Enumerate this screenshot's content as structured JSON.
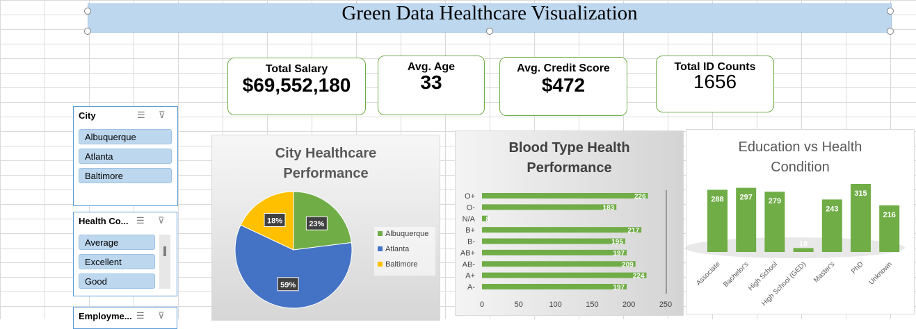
{
  "title": "Green Data Healthcare Visualization",
  "kpis": {
    "total_salary": {
      "label": "Total Salary",
      "value": "$69,552,180"
    },
    "avg_age": {
      "label": "Avg. Age",
      "value": "33"
    },
    "avg_credit": {
      "label": "Avg. Credit Score",
      "value": "$472"
    },
    "total_id": {
      "label": "Total ID Counts",
      "value": "1656"
    }
  },
  "slicers": {
    "city": {
      "header": "City",
      "items": [
        "Albuquerque",
        "Atlanta",
        "Baltimore"
      ]
    },
    "health": {
      "header": "Health Co...",
      "items": [
        "Average",
        "Excellent",
        "Good"
      ]
    },
    "employment": {
      "header": "Employme..."
    }
  },
  "icons": {
    "multiselect": "multi-select-icon",
    "clearfilter": "clear-filter-icon"
  },
  "colors": {
    "green": "#70ad47",
    "blue": "#4472c4",
    "gold": "#ffc000",
    "slicer_item": "#bdd7ee",
    "title_bg": "#bdd7ee"
  },
  "chart_data": [
    {
      "type": "pie",
      "title": "City Healthcare Performance",
      "categories": [
        "Albuquerque",
        "Atlanta",
        "Baltimore"
      ],
      "values": [
        23,
        59,
        18
      ],
      "labels": [
        "23%",
        "59%",
        "18%"
      ],
      "legend": "right"
    },
    {
      "type": "bar",
      "orientation": "horizontal",
      "title": "Blood Type Health Performance",
      "categories": [
        "O+",
        "O-",
        "N/A",
        "B+",
        "B-",
        "AB+",
        "AB-",
        "A+",
        "A-"
      ],
      "values": [
        226,
        183,
        8,
        217,
        195,
        197,
        209,
        224,
        197
      ],
      "xlim": [
        0,
        250
      ],
      "xticks": [
        "0",
        "50",
        "100",
        "150",
        "200",
        "250"
      ]
    },
    {
      "type": "bar",
      "title": "Education vs Health Condition",
      "categories": [
        "Associate",
        "Bachelor's",
        "High School",
        "High School (GED)",
        "Master's",
        "PhD",
        "Unknown"
      ],
      "values": [
        288,
        297,
        279,
        18,
        243,
        315,
        216
      ]
    }
  ]
}
